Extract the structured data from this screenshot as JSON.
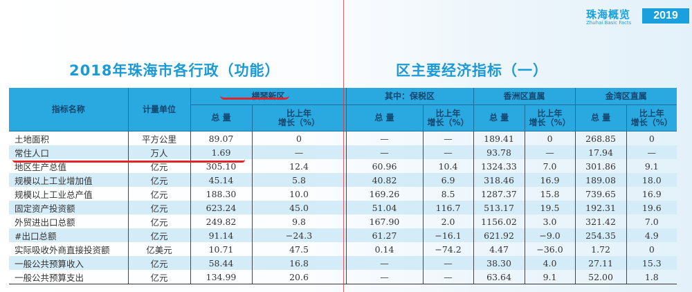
{
  "brand": {
    "name_cn": "珠海概览",
    "name_en": "Zhuhai Basic Facts",
    "year": "2019"
  },
  "title": {
    "left": "2018年珠海市各行政（功能）",
    "right": "区主要经济指标（一）"
  },
  "table": {
    "col_name": "指标名称",
    "col_unit": "计量单位",
    "groups": [
      "横琴新区",
      "其中：保税区",
      "香洲区直属",
      "金湾区直属"
    ],
    "sub_total": "总 量",
    "sub_growth_line1": "比上年",
    "sub_growth_line2": "增长（%）",
    "rows": [
      [
        "土地面积",
        "平方公里",
        "89.07",
        "0",
        "—",
        "—",
        "189.41",
        "0",
        "268.85",
        "0"
      ],
      [
        "常住人口",
        "万人",
        "1.69",
        "—",
        "—",
        "—",
        "93.78",
        "—",
        "17.94",
        "—"
      ],
      [
        "地区生产总值",
        "亿元",
        "305.10",
        "12.4",
        "60.96",
        "10.4",
        "1324.33",
        "7.0",
        "301.86",
        "9.1"
      ],
      [
        "规模以上工业增加值",
        "亿元",
        "45.14",
        "5.8",
        "40.82",
        "6.9",
        "318.46",
        "16.9",
        "189.08",
        "18.0"
      ],
      [
        "规模以上工业总产值",
        "亿元",
        "188.30",
        "10.0",
        "169.26",
        "8.5",
        "1287.37",
        "15.8",
        "739.65",
        "16.9"
      ],
      [
        "固定资产投资额",
        "亿元",
        "623.24",
        "45.0",
        "51.04",
        "116.7",
        "513.17",
        "19.5",
        "192.31",
        "19.6"
      ],
      [
        "外贸进出口总额",
        "亿元",
        "249.82",
        "9.8",
        "167.90",
        "2.0",
        "1156.02",
        "3.0",
        "321.42",
        "7.0"
      ],
      [
        " #出口总额",
        "亿元",
        "91.14",
        "−24.3",
        "61.27",
        "−16.1",
        "621.92",
        "−9.0",
        "254.35",
        "4.9"
      ],
      [
        "实际吸收外商直接投资额",
        "亿美元",
        "10.71",
        "47.5",
        "0.14",
        "−74.2",
        "4.47",
        "−36.0",
        "1.72",
        "0"
      ],
      [
        "一般公共预算收入",
        "亿元",
        "58.44",
        "16.8",
        "—",
        "—",
        "38.30",
        "4.0",
        "27.11",
        "15.3"
      ],
      [
        "一般公共预算支出",
        "亿元",
        "134.99",
        "20.6",
        "—",
        "—",
        "63.64",
        "9.1",
        "52.00",
        "1.8"
      ]
    ]
  },
  "colors": {
    "header": "#29a9e0",
    "alt_row": "#d4ecf8",
    "title": "#1a9ad6",
    "annotation": "#e0242a"
  }
}
